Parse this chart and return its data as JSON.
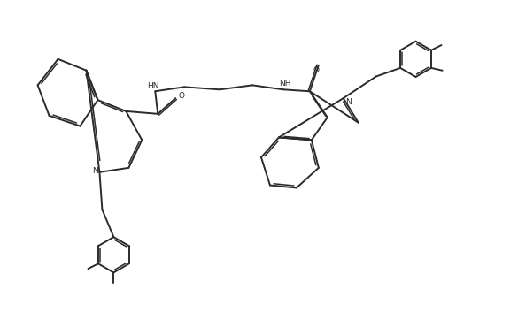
{
  "background": "#ffffff",
  "line_color": "#2b2b2b",
  "line_width": 1.4,
  "inner_lw": 1.1,
  "figsize": [
    5.76,
    3.62
  ],
  "dpi": 100,
  "xlim": [
    0,
    100
  ],
  "ylim": [
    0,
    62
  ],
  "label_fs": 6.5,
  "methyl_fs": 6.0
}
